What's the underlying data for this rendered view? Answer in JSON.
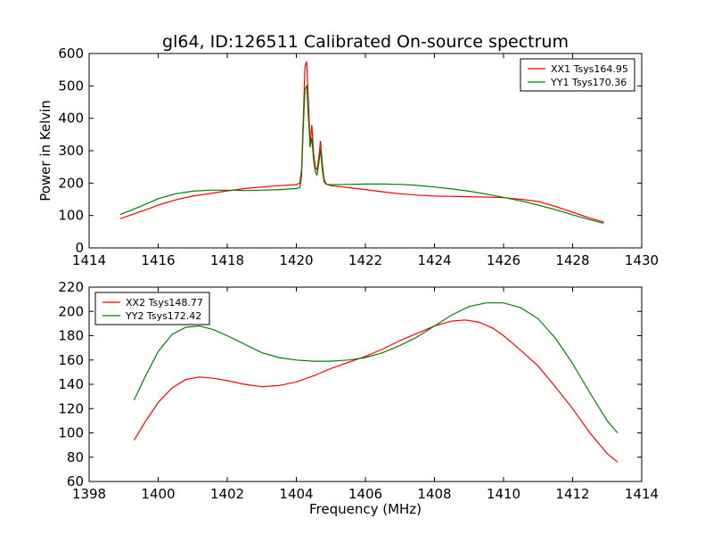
{
  "figure_title": "gl64, ID:126511 Calibrated On-source spectrum",
  "chart_data": [
    {
      "type": "line",
      "title": "gl64, ID:126511 Calibrated On-source spectrum",
      "xlabel": "",
      "ylabel": "Power in Kelvin",
      "xlim": [
        1414,
        1430
      ],
      "ylim": [
        0,
        600
      ],
      "xticks": [
        1414,
        1416,
        1418,
        1420,
        1422,
        1424,
        1426,
        1428,
        1430
      ],
      "yticks": [
        0,
        100,
        200,
        300,
        400,
        500,
        600
      ],
      "grid": false,
      "legend_position": "top-right",
      "series": [
        {
          "name": "XX1 Tsys164.95",
          "color": "#ff0000",
          "x": [
            1414.9,
            1415.3,
            1415.7,
            1416.0,
            1416.5,
            1417.0,
            1417.5,
            1418.0,
            1418.5,
            1419.0,
            1419.5,
            1420.0,
            1420.1,
            1420.15,
            1420.2,
            1420.25,
            1420.3,
            1420.35,
            1420.4,
            1420.45,
            1420.5,
            1420.55,
            1420.6,
            1420.65,
            1420.7,
            1420.75,
            1420.8,
            1420.85,
            1420.9,
            1421.0,
            1421.5,
            1422.0,
            1422.5,
            1423.0,
            1423.5,
            1424.0,
            1424.5,
            1425.0,
            1425.5,
            1426.0,
            1426.5,
            1427.0,
            1427.5,
            1428.0,
            1428.5,
            1428.9
          ],
          "values": [
            90,
            105,
            120,
            132,
            148,
            160,
            168,
            176,
            183,
            188,
            192,
            195,
            200,
            240,
            400,
            560,
            575,
            450,
            320,
            380,
            290,
            250,
            240,
            280,
            330,
            260,
            215,
            200,
            195,
            192,
            186,
            180,
            173,
            167,
            163,
            160,
            159,
            158,
            157,
            155,
            150,
            143,
            128,
            110,
            92,
            80
          ]
        },
        {
          "name": "YY1 Tsys170.36",
          "color": "#008000",
          "x": [
            1414.9,
            1415.3,
            1415.7,
            1416.0,
            1416.5,
            1417.0,
            1417.5,
            1418.0,
            1418.5,
            1419.0,
            1419.5,
            1420.0,
            1420.1,
            1420.15,
            1420.2,
            1420.25,
            1420.3,
            1420.35,
            1420.4,
            1420.45,
            1420.5,
            1420.55,
            1420.6,
            1420.65,
            1420.7,
            1420.75,
            1420.8,
            1420.85,
            1420.9,
            1421.0,
            1421.5,
            1422.0,
            1422.5,
            1423.0,
            1423.5,
            1424.0,
            1424.5,
            1425.0,
            1425.5,
            1426.0,
            1426.5,
            1427.0,
            1427.5,
            1428.0,
            1428.5,
            1428.9
          ],
          "values": [
            103,
            120,
            138,
            152,
            167,
            175,
            178,
            178,
            177,
            178,
            180,
            183,
            186,
            220,
            370,
            490,
            500,
            400,
            310,
            340,
            270,
            235,
            225,
            260,
            305,
            240,
            205,
            198,
            196,
            195,
            196,
            197,
            197,
            196,
            193,
            188,
            182,
            175,
            166,
            156,
            145,
            132,
            118,
            102,
            87,
            76
          ]
        }
      ]
    },
    {
      "type": "line",
      "title": "",
      "xlabel": "Frequency (MHz)",
      "ylabel": "",
      "xlim": [
        1398,
        1414
      ],
      "ylim": [
        60,
        220
      ],
      "xticks": [
        1398,
        1400,
        1402,
        1404,
        1406,
        1408,
        1410,
        1412,
        1414
      ],
      "yticks": [
        60,
        80,
        100,
        120,
        140,
        160,
        180,
        200,
        220
      ],
      "grid": false,
      "legend_position": "top-left",
      "series": [
        {
          "name": "XX2 Tsys148.77",
          "color": "#ff0000",
          "x": [
            1399.3,
            1399.6,
            1400.0,
            1400.4,
            1400.8,
            1401.2,
            1401.6,
            1402.0,
            1402.5,
            1403.0,
            1403.5,
            1404.0,
            1404.5,
            1405.0,
            1405.5,
            1406.0,
            1406.5,
            1407.0,
            1407.5,
            1408.0,
            1408.5,
            1408.9,
            1409.3,
            1409.7,
            1410.0,
            1410.5,
            1411.0,
            1411.5,
            1412.0,
            1412.5,
            1413.0,
            1413.3
          ],
          "values": [
            94,
            108,
            125,
            137,
            144,
            146,
            145,
            143,
            140,
            138,
            139,
            142,
            147,
            153,
            158,
            163,
            169,
            176,
            182,
            188,
            192,
            193,
            191,
            186,
            180,
            168,
            155,
            138,
            120,
            100,
            83,
            76
          ]
        },
        {
          "name": "YY2 Tsys172.42",
          "color": "#008000",
          "x": [
            1399.3,
            1399.6,
            1400.0,
            1400.4,
            1400.8,
            1401.2,
            1401.6,
            1402.0,
            1402.5,
            1403.0,
            1403.5,
            1404.0,
            1404.5,
            1405.0,
            1405.5,
            1406.0,
            1406.5,
            1407.0,
            1407.5,
            1408.0,
            1408.5,
            1409.0,
            1409.5,
            1410.0,
            1410.5,
            1411.0,
            1411.5,
            1412.0,
            1412.5,
            1413.0,
            1413.3
          ],
          "values": [
            127,
            145,
            167,
            181,
            187,
            188,
            185,
            180,
            173,
            166,
            162,
            160,
            159,
            159,
            160,
            162,
            166,
            172,
            179,
            188,
            197,
            204,
            207,
            207,
            203,
            194,
            178,
            157,
            133,
            110,
            100
          ]
        }
      ]
    }
  ]
}
